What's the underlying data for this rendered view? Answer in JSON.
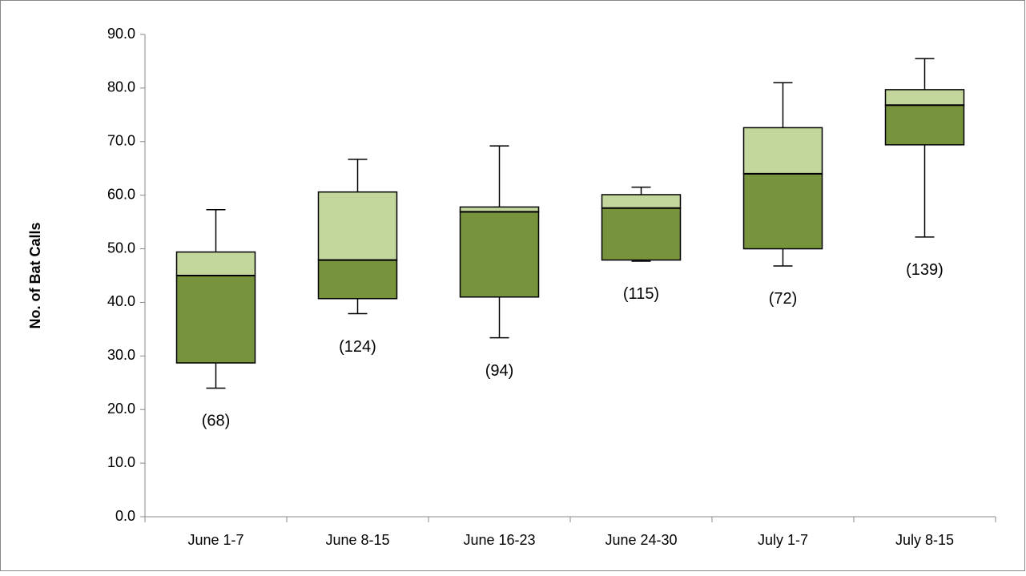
{
  "chart_data": {
    "type": "box",
    "y_label": "No. of Bat Calls",
    "categories": [
      "June 1-7",
      "June 8-15",
      "June 16-23",
      "June 24-30",
      "July 1-7",
      "July 8-15"
    ],
    "low": [
      24.0,
      37.9,
      33.4,
      47.7,
      46.8,
      52.2
    ],
    "q1": [
      28.7,
      40.7,
      41.0,
      47.9,
      50.0,
      69.4
    ],
    "median": [
      45.0,
      47.9,
      56.9,
      57.6,
      64.0,
      76.8
    ],
    "q3": [
      49.4,
      60.6,
      57.8,
      60.1,
      72.6,
      79.7
    ],
    "high": [
      57.3,
      66.7,
      69.2,
      61.5,
      81.0,
      85.5
    ],
    "annotations": [
      "(68)",
      "(124)",
      "(94)",
      "(115)",
      "(72)",
      "(139)"
    ],
    "lower_color": "#77933c",
    "upper_color": "#c3d69b",
    "ylim": [
      0,
      90
    ],
    "yticks": [
      {
        "value": 0,
        "label": "0.0"
      },
      {
        "value": 10,
        "label": "10.0"
      },
      {
        "value": 20,
        "label": "20.0"
      },
      {
        "value": 30,
        "label": "30.0"
      },
      {
        "value": 40,
        "label": "40.0"
      },
      {
        "value": 50,
        "label": "50.0"
      },
      {
        "value": 60,
        "label": "60.0"
      },
      {
        "value": 70,
        "label": "70.0"
      },
      {
        "value": 80,
        "label": "80.0"
      },
      {
        "value": 90,
        "label": "90.0"
      }
    ],
    "grid": false
  }
}
